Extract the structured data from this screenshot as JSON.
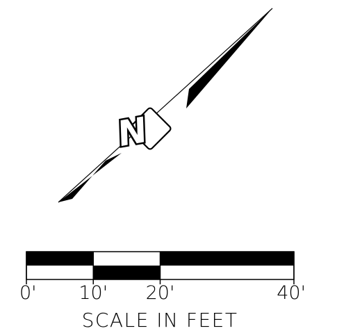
{
  "north_arrow": {
    "letter": "N",
    "color": "#000000"
  },
  "scale_bar": {
    "ticks": [
      {
        "value": 0,
        "label": "0'"
      },
      {
        "value": 10,
        "label": "10'"
      },
      {
        "value": 20,
        "label": "20'"
      },
      {
        "value": 40,
        "label": "40'"
      }
    ],
    "segments": [
      {
        "from": 0,
        "to": 10,
        "top": "black",
        "bottom": "white"
      },
      {
        "from": 10,
        "to": 20,
        "top": "white",
        "bottom": "black"
      },
      {
        "from": 20,
        "to": 40,
        "top": "black",
        "bottom": "white"
      }
    ],
    "caption": "SCALE IN FEET"
  }
}
